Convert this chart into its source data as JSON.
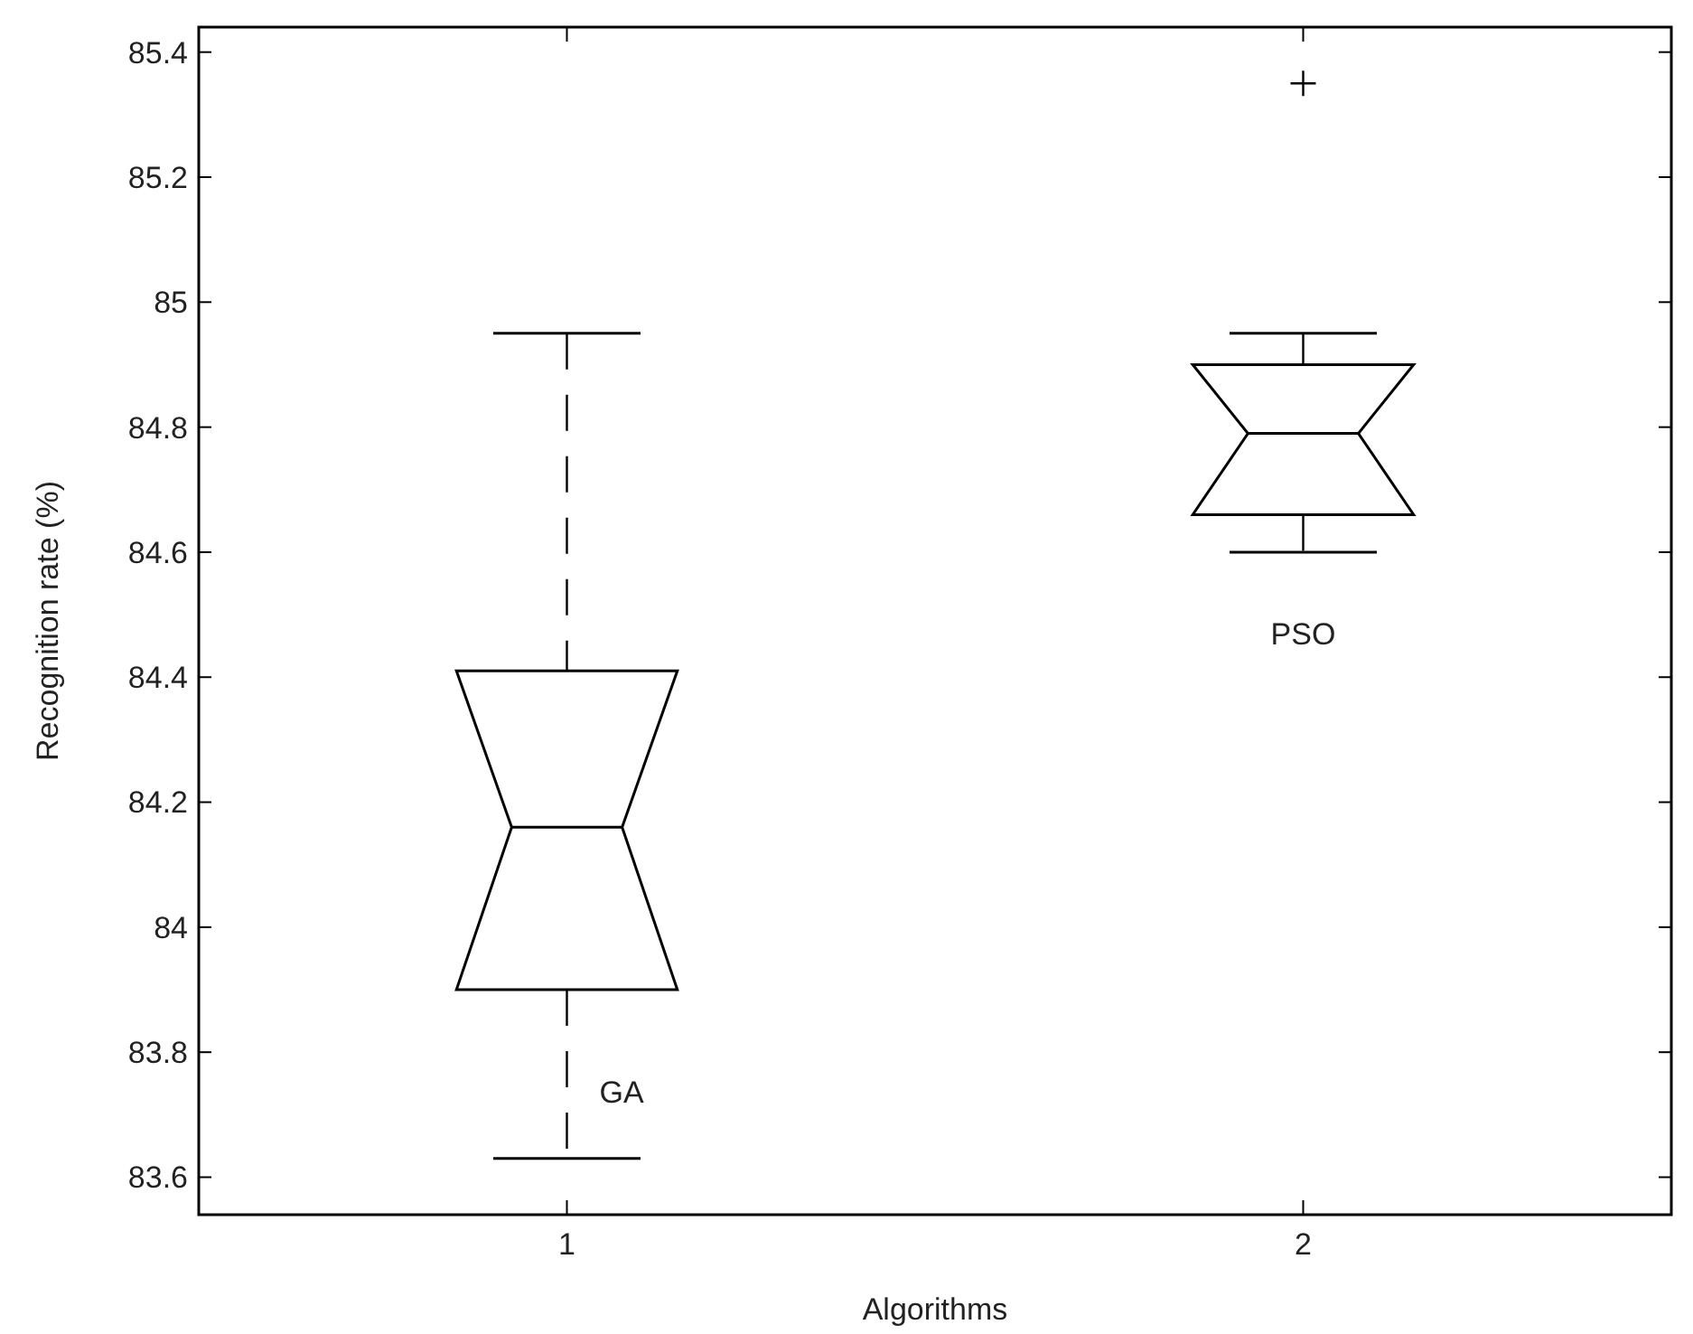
{
  "chart_data": {
    "type": "box",
    "xlabel": "Algorithms",
    "ylabel": "Recognition rate (%)",
    "categories": [
      "1",
      "2"
    ],
    "boxes": [
      {
        "low": 83.63,
        "q1": 83.9,
        "median": 84.16,
        "q3": 84.41,
        "high": 84.95
      },
      {
        "low": 84.6,
        "q1": 84.66,
        "median": 84.79,
        "q3": 84.9,
        "high": 84.95,
        "outliers": [
          85.35
        ]
      }
    ],
    "color": "#000000",
    "line_style": "dashed",
    "marker": "cross",
    "ylim": [
      83.54,
      85.44
    ],
    "yticks": [
      83.6,
      83.8,
      84,
      84.2,
      84.4,
      84.6,
      84.8,
      85,
      85.2,
      85.4
    ],
    "annotations": [
      "GA",
      "PSO"
    ],
    "grid": false
  }
}
